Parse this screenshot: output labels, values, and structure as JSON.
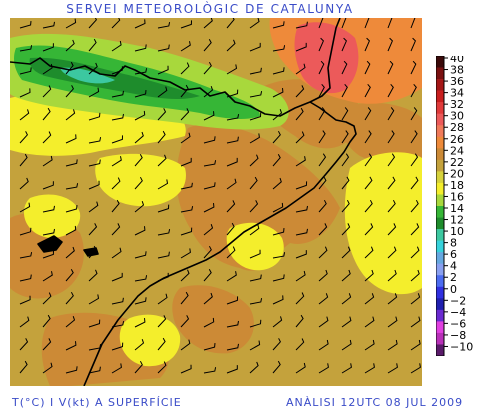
{
  "header": {
    "title": "SERVEI METEOROLÒGIC DE CATALUNYA"
  },
  "footer": {
    "left": "T(°C) I V(kt) A SUPERFÍCIE",
    "right": "ANÀLISI 12UTC 08 JUL 2009"
  },
  "legend": {
    "unit": "°C",
    "levels": [
      {
        "value": "40",
        "color": "#3b0a0a"
      },
      {
        "value": "38",
        "color": "#7a1010"
      },
      {
        "value": "36",
        "color": "#a41616"
      },
      {
        "value": "34",
        "color": "#c81e1e"
      },
      {
        "value": "32",
        "color": "#e03a3a"
      },
      {
        "value": "30",
        "color": "#ec5a5a"
      },
      {
        "value": "28",
        "color": "#f07a5a"
      },
      {
        "value": "26",
        "color": "#ee8a3a"
      },
      {
        "value": "24",
        "color": "#cc8a36"
      },
      {
        "value": "22",
        "color": "#c4a23c"
      },
      {
        "value": "20",
        "color": "#d6d23c"
      },
      {
        "value": "18",
        "color": "#f4ee2c"
      },
      {
        "value": "16",
        "color": "#a8d83c"
      },
      {
        "value": "14",
        "color": "#36b636"
      },
      {
        "value": "12",
        "color": "#1e8c2c"
      },
      {
        "value": "10",
        "color": "#3cc8a0"
      },
      {
        "value": "8",
        "color": "#36d2dc"
      },
      {
        "value": "6",
        "color": "#66a8e0"
      },
      {
        "value": "4",
        "color": "#8aa0f0"
      },
      {
        "value": "2",
        "color": "#4c6cf0"
      },
      {
        "value": "0",
        "color": "#3030e0"
      },
      {
        "value": "−2",
        "color": "#2020b0"
      },
      {
        "value": "−4",
        "color": "#6a2ad0"
      },
      {
        "value": "−6",
        "color": "#e040e0"
      },
      {
        "value": "−8",
        "color": "#b830b8"
      },
      {
        "value": "−10",
        "color": "#5a1a6a"
      }
    ]
  },
  "map": {
    "variable": "surface temperature and wind",
    "palette": {
      "background": "#c4a23c",
      "hot": "#cc8a36",
      "warm": "#ee8a3a",
      "very_hot": "#ec5a5a",
      "yellow": "#f4ee2c",
      "light_green": "#a8d83c",
      "green": "#36b636",
      "dark_green": "#1e8c2c",
      "teal": "#3cc8a0",
      "coast_line": "#000000",
      "barb": "#000000"
    }
  }
}
